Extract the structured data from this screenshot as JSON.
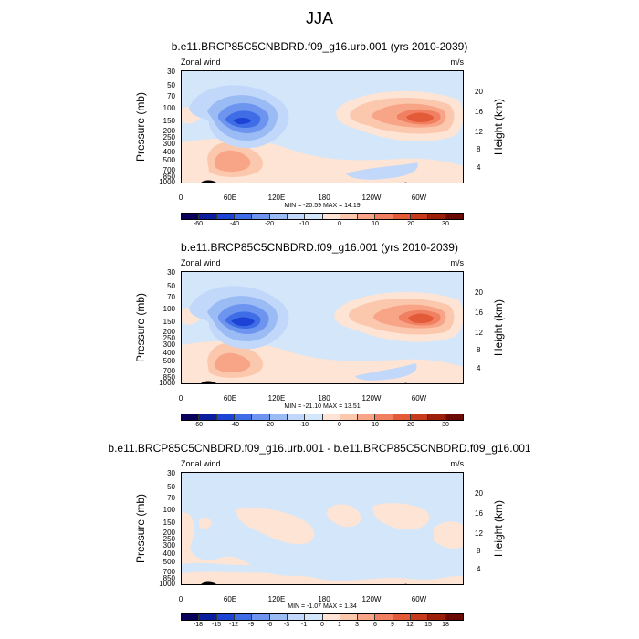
{
  "figure": {
    "title": "JJA"
  },
  "palette": {
    "neg": [
      "#08005a",
      "#0a1ea0",
      "#1c43d6",
      "#3f6de6",
      "#6d95f0",
      "#9bbbf5",
      "#c2d8fa",
      "#d4e6fa"
    ],
    "pos": [
      "#fde4d4",
      "#fbc8ae",
      "#f7a487",
      "#f18063",
      "#e35a38",
      "#c73a1c",
      "#9c1f0a",
      "#6a0a02"
    ]
  },
  "chart_data": [
    {
      "type": "contour",
      "title": "b.e11.BRCP85C5CNBDRD.f09_g16.urb.001 (yrs 2010-2039)",
      "variable_label": "Zonal wind",
      "units": "m/s",
      "ylabel_left": "Pressure (mb)",
      "ylabel_right": "Height (km)",
      "pressure_ticks": [
        "30",
        "50",
        "70",
        "100",
        "150",
        "200",
        "250",
        "300",
        "400",
        "500",
        "700",
        "850",
        "1000"
      ],
      "height_ticks": [
        "20",
        "16",
        "12",
        "8",
        "4"
      ],
      "lon_ticks": [
        "0",
        "60E",
        "120E",
        "180",
        "120W",
        "60W"
      ],
      "minmax_text": "MIN = -20.59   MAX =  14.19",
      "colorbar_labels": [
        "-60",
        "-40",
        "-20",
        "-10",
        "0",
        "10",
        "20",
        "30"
      ],
      "min": -20.59,
      "max": 14.19
    },
    {
      "type": "contour",
      "title": "b.e11.BRCP85C5CNBDRD.f09_g16.001 (yrs 2010-2039)",
      "variable_label": "Zonal wind",
      "units": "m/s",
      "ylabel_left": "Pressure (mb)",
      "ylabel_right": "Height (km)",
      "pressure_ticks": [
        "30",
        "50",
        "70",
        "100",
        "150",
        "200",
        "250",
        "300",
        "400",
        "500",
        "700",
        "850",
        "1000"
      ],
      "height_ticks": [
        "20",
        "16",
        "12",
        "8",
        "4"
      ],
      "lon_ticks": [
        "0",
        "60E",
        "120E",
        "180",
        "120W",
        "60W"
      ],
      "minmax_text": "MIN = -21.10   MAX =  13.51",
      "colorbar_labels": [
        "-60",
        "-40",
        "-20",
        "-10",
        "0",
        "10",
        "20",
        "30"
      ],
      "min": -21.1,
      "max": 13.51
    },
    {
      "type": "contour",
      "title": "b.e11.BRCP85C5CNBDRD.f09_g16.urb.001 - b.e11.BRCP85C5CNBDRD.f09_g16.001",
      "variable_label": "Zonal wind",
      "units": "m/s",
      "ylabel_left": "Pressure (mb)",
      "ylabel_right": "Height (km)",
      "pressure_ticks": [
        "30",
        "50",
        "70",
        "100",
        "150",
        "200",
        "250",
        "300",
        "400",
        "500",
        "700",
        "850",
        "1000"
      ],
      "height_ticks": [
        "20",
        "16",
        "12",
        "8",
        "4"
      ],
      "lon_ticks": [
        "0",
        "60E",
        "120E",
        "180",
        "120W",
        "60W"
      ],
      "minmax_text": "MIN = -1.07   MAX =  1.34",
      "colorbar_labels": [
        "-18",
        "-15",
        "-12",
        "-9",
        "-6",
        "-3",
        "-1",
        "0",
        "1",
        "3",
        "6",
        "9",
        "12",
        "15",
        "18"
      ],
      "min": -1.07,
      "max": 1.34
    }
  ]
}
